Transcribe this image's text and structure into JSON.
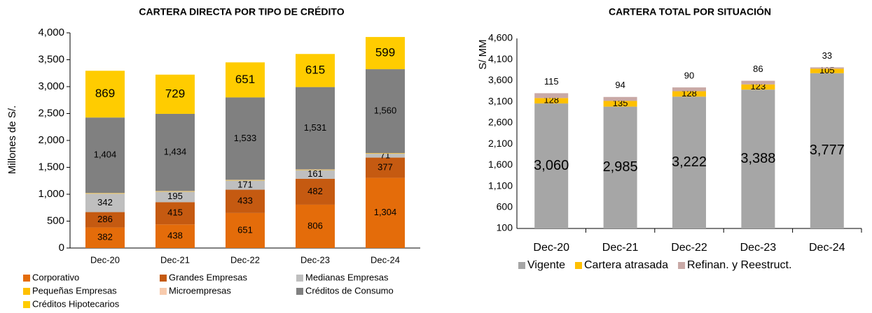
{
  "chart_data": [
    {
      "type": "bar",
      "stacked": true,
      "title": "CARTERA DIRECTA POR TIPO DE CRÉDITO",
      "y_label": "Millones de S/.",
      "categories": [
        "Dec-20",
        "Dec-21",
        "Dec-22",
        "Dec-23",
        "Dec-24"
      ],
      "ylim": [
        0,
        4000
      ],
      "yticks": [
        0,
        500,
        {
          "value": 1000,
          "label": "1,000"
        },
        {
          "value": 1500,
          "label": "1,500"
        },
        {
          "value": 2000,
          "label": "2,000"
        },
        {
          "value": 2500,
          "label": "2,500"
        },
        {
          "value": 3000,
          "label": "3,000"
        },
        {
          "value": 3500,
          "label": "3,500"
        },
        {
          "value": 4000,
          "label": "4,000"
        }
      ],
      "series": [
        {
          "name": "Corporativo",
          "color": "#E46C0A",
          "values": [
            382,
            438,
            651,
            806,
            1304
          ],
          "value_labels": [
            "382",
            "438",
            "651",
            "806",
            "1,304"
          ]
        },
        {
          "name": "Grandes Empresas",
          "color": "#C55A11",
          "values": [
            286,
            415,
            433,
            482,
            377
          ],
          "value_labels": [
            "286",
            "415",
            "433",
            "482",
            "377"
          ]
        },
        {
          "name": "Medianas Empresas",
          "color": "#BFBFBF",
          "values": [
            342,
            195,
            171,
            161,
            71
          ],
          "value_labels": [
            "342",
            "195",
            "171",
            "161",
            "71"
          ]
        },
        {
          "name": "Pequeñas Empresas",
          "color": "#FFC000",
          "values": [
            8,
            8,
            8,
            8,
            8
          ]
        },
        {
          "name": "Microempresas",
          "color": "#F8CBAD",
          "values": [
            4,
            4,
            4,
            4,
            4
          ]
        },
        {
          "name": "Créditos de Consumo",
          "color": "#808080",
          "values": [
            1404,
            1434,
            1533,
            1531,
            1560
          ],
          "value_labels": [
            "1,404",
            "1,434",
            "1,533",
            "1,531",
            "1,560"
          ]
        },
        {
          "name": "Créditos Hipotecarios",
          "color": "#FFCC00",
          "values": [
            869,
            729,
            651,
            615,
            599
          ],
          "value_labels": [
            "869",
            "729",
            "651",
            "615",
            "599"
          ]
        }
      ],
      "legend": "bottom"
    },
    {
      "type": "bar",
      "stacked": true,
      "title": "CARTERA TOTAL POR SITUACIÓN",
      "y_label": "S/ MM",
      "categories": [
        "Dec-20",
        "Dec-21",
        "Dec-22",
        "Dec-23",
        "Dec-24"
      ],
      "ylim": [
        100,
        4600
      ],
      "yticks": [
        100,
        600,
        {
          "value": 1100,
          "label": "1,100"
        },
        {
          "value": 1600,
          "label": "1,600"
        },
        {
          "value": 2100,
          "label": "2,100"
        },
        {
          "value": 2600,
          "label": "2,600"
        },
        {
          "value": 3100,
          "label": "3,100"
        },
        {
          "value": 3600,
          "label": "3,600"
        },
        {
          "value": 4100,
          "label": "4,100"
        },
        {
          "value": 4600,
          "label": "4,600"
        }
      ],
      "series": [
        {
          "name": "Vigente",
          "color": "#A6A6A6",
          "values": [
            3060,
            2985,
            3222,
            3388,
            3777
          ],
          "value_labels": [
            "3,060",
            "2,985",
            "3,222",
            "3,388",
            "3,777"
          ]
        },
        {
          "name": "Cartera atrasada",
          "color": "#FFC000",
          "values": [
            128,
            135,
            128,
            123,
            105
          ],
          "value_labels": [
            "128",
            "135",
            "128",
            "123",
            "105"
          ]
        },
        {
          "name": "Refinan. y Reestruct.",
          "color": "#C9A9A6",
          "values": [
            115,
            94,
            90,
            86,
            33
          ],
          "value_labels": [
            "115",
            "94",
            "90",
            "86",
            "33"
          ]
        }
      ],
      "legend": "bottom"
    }
  ]
}
